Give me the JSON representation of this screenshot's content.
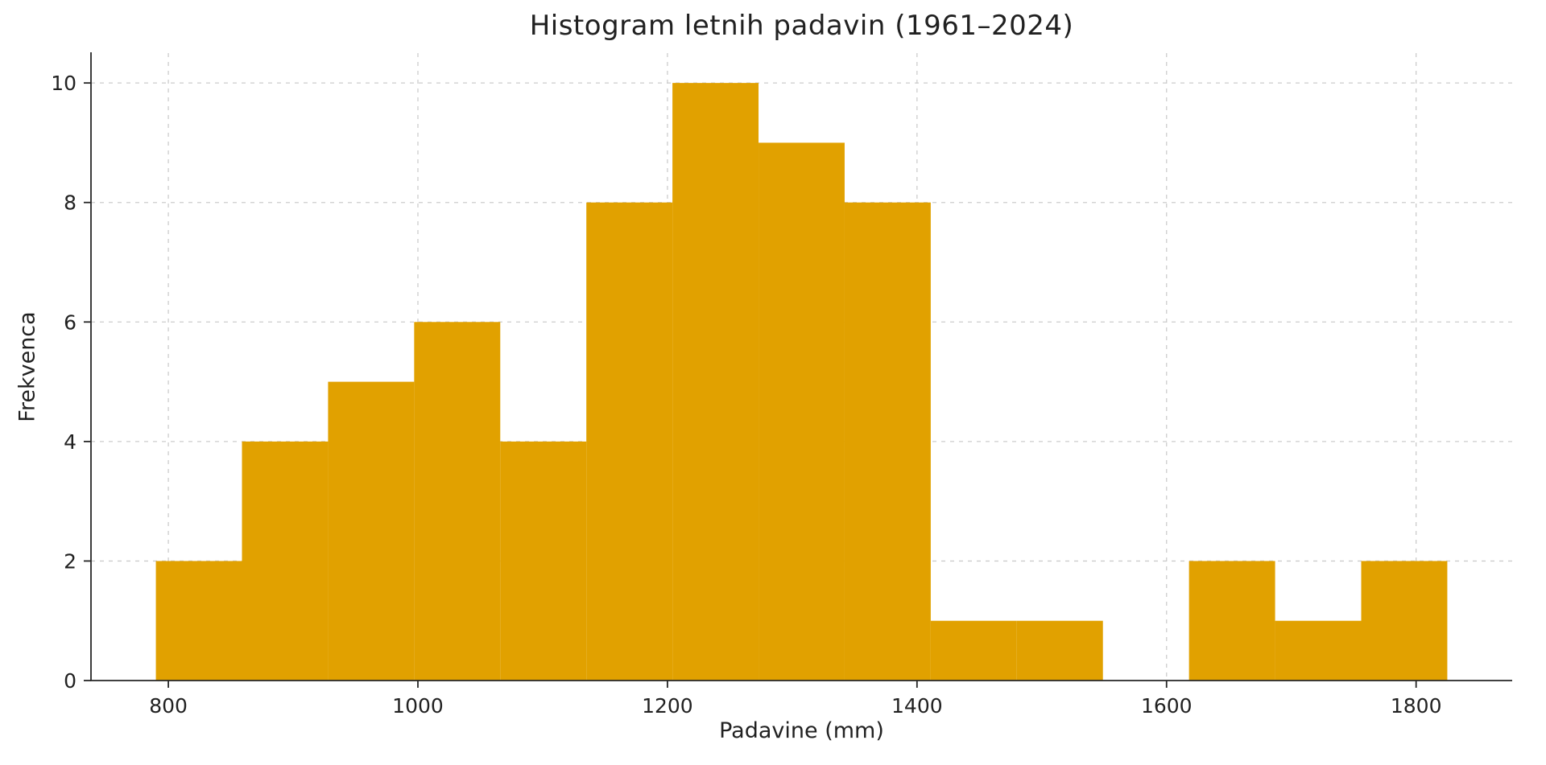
{
  "chart_data": {
    "type": "bar",
    "subtype": "histogram",
    "title": "Histogram letnih padavin (1961–2024)",
    "xlabel": "Padavine (mm)",
    "ylabel": "Frekvenca",
    "bar_color": "#E1A100",
    "grid_color": "#cccccc",
    "axis_color": "#262626",
    "text_color": "#212121",
    "grid_on": true,
    "legend": "none",
    "xlim": [
      738,
      1877
    ],
    "ylim": [
      0,
      10.5
    ],
    "x_ticks": [
      800,
      1000,
      1200,
      1400,
      1600,
      1800
    ],
    "y_ticks": [
      0,
      2,
      4,
      6,
      8,
      10
    ],
    "bin_edges": [
      790,
      859,
      928,
      997,
      1066,
      1135,
      1204,
      1273,
      1342,
      1411,
      1480,
      1549,
      1618,
      1687,
      1756,
      1825
    ],
    "counts": [
      2,
      4,
      5,
      6,
      4,
      8,
      10,
      9,
      8,
      1,
      1,
      0,
      2,
      1,
      2
    ]
  }
}
